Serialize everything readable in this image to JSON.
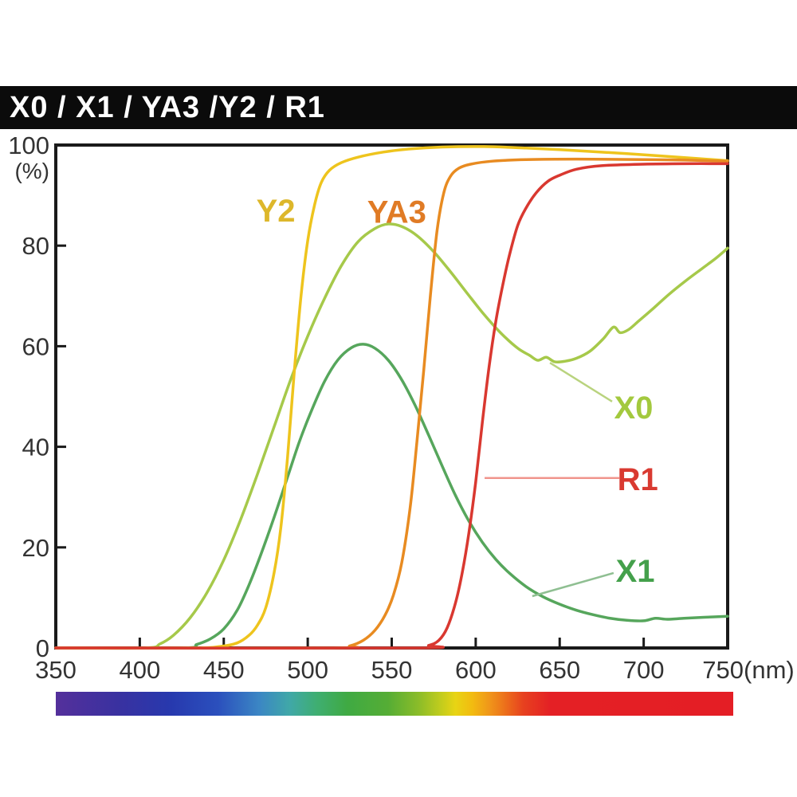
{
  "title_bar": {
    "text": "X0 / X1 / YA3 /Y2 / R1"
  },
  "chart_data": {
    "type": "line",
    "title": "X0 / X1 / YA3 /Y2 / R1",
    "xlabel": "(nm)",
    "ylabel": "(%)",
    "xlim": [
      350,
      750
    ],
    "ylim": [
      0,
      100
    ],
    "grid": false,
    "x_ticks": [
      350,
      400,
      450,
      500,
      550,
      600,
      650,
      700,
      750
    ],
    "x_tick_labels": [
      "350",
      "400",
      "450",
      "500",
      "550",
      "600",
      "650",
      "700",
      "750(nm)"
    ],
    "y_ticks": [
      0,
      20,
      40,
      60,
      80,
      100
    ],
    "y_tick_labels": [
      "0",
      "20",
      "40",
      "60",
      "80",
      "100"
    ],
    "frame_color": "#1a1a1a",
    "tick_label_color": "#333333",
    "series": [
      {
        "name": "X0",
        "color": "#a6c94a",
        "points": [
          [
            350,
            0
          ],
          [
            403,
            0
          ],
          [
            412,
            0.8
          ],
          [
            420,
            2.5
          ],
          [
            430,
            6
          ],
          [
            440,
            11
          ],
          [
            450,
            17.5
          ],
          [
            460,
            25.5
          ],
          [
            470,
            34.5
          ],
          [
            480,
            44
          ],
          [
            490,
            53.5
          ],
          [
            500,
            62
          ],
          [
            510,
            69.5
          ],
          [
            520,
            76
          ],
          [
            530,
            80.8
          ],
          [
            540,
            83.4
          ],
          [
            548,
            84.3
          ],
          [
            556,
            83.8
          ],
          [
            565,
            82
          ],
          [
            575,
            78.8
          ],
          [
            585,
            74.8
          ],
          [
            595,
            70.5
          ],
          [
            605,
            66.3
          ],
          [
            615,
            62.6
          ],
          [
            625,
            59.6
          ],
          [
            632,
            58.2
          ],
          [
            637,
            57.2
          ],
          [
            642,
            57.8
          ],
          [
            647,
            56.9
          ],
          [
            653,
            57
          ],
          [
            660,
            57.6
          ],
          [
            668,
            59
          ],
          [
            676,
            61.5
          ],
          [
            682,
            63.8
          ],
          [
            686,
            62.7
          ],
          [
            691,
            63.3
          ],
          [
            697,
            65
          ],
          [
            705,
            67.3
          ],
          [
            715,
            70.3
          ],
          [
            725,
            73
          ],
          [
            735,
            75.5
          ],
          [
            743,
            77.5
          ],
          [
            750,
            79.5
          ]
        ]
      },
      {
        "name": "X1",
        "color": "#56a65c",
        "points": [
          [
            350,
            0
          ],
          [
            425,
            0
          ],
          [
            434,
            0.7
          ],
          [
            442,
            1.8
          ],
          [
            450,
            3.8
          ],
          [
            458,
            7.5
          ],
          [
            465,
            12.5
          ],
          [
            472,
            18.5
          ],
          [
            480,
            26
          ],
          [
            488,
            34
          ],
          [
            495,
            41
          ],
          [
            502,
            47
          ],
          [
            510,
            53
          ],
          [
            518,
            57.3
          ],
          [
            526,
            59.7
          ],
          [
            533,
            60.4
          ],
          [
            540,
            59.6
          ],
          [
            548,
            57.2
          ],
          [
            556,
            53.3
          ],
          [
            564,
            48.2
          ],
          [
            572,
            42.3
          ],
          [
            580,
            36.2
          ],
          [
            588,
            30.3
          ],
          [
            596,
            25.2
          ],
          [
            604,
            21
          ],
          [
            612,
            17.6
          ],
          [
            620,
            14.9
          ],
          [
            630,
            12.2
          ],
          [
            640,
            10.2
          ],
          [
            650,
            8.7
          ],
          [
            660,
            7.5
          ],
          [
            670,
            6.6
          ],
          [
            680,
            5.9
          ],
          [
            690,
            5.5
          ],
          [
            700,
            5.4
          ],
          [
            707,
            5.9
          ],
          [
            714,
            5.7
          ],
          [
            724,
            5.9
          ],
          [
            736,
            6.1
          ],
          [
            750,
            6.3
          ]
        ]
      },
      {
        "name": "Y2",
        "color": "#eec41d",
        "points": [
          [
            350,
            0
          ],
          [
            430,
            0
          ],
          [
            448,
            0.3
          ],
          [
            458,
            1
          ],
          [
            465,
            2.5
          ],
          [
            470,
            4.5
          ],
          [
            475,
            8
          ],
          [
            480,
            15
          ],
          [
            484,
            24
          ],
          [
            488,
            38
          ],
          [
            492,
            55
          ],
          [
            496,
            70
          ],
          [
            500,
            81
          ],
          [
            504,
            88
          ],
          [
            508,
            92.5
          ],
          [
            513,
            95
          ],
          [
            520,
            96.5
          ],
          [
            530,
            97.6
          ],
          [
            545,
            98.6
          ],
          [
            560,
            99.2
          ],
          [
            580,
            99.6
          ],
          [
            605,
            99.7
          ],
          [
            630,
            99.4
          ],
          [
            660,
            98.9
          ],
          [
            690,
            98.3
          ],
          [
            720,
            97.6
          ],
          [
            750,
            96.9
          ]
        ]
      },
      {
        "name": "YA3",
        "color": "#e88b21",
        "points": [
          [
            350,
            0
          ],
          [
            515,
            0
          ],
          [
            525,
            0.4
          ],
          [
            533,
            1.5
          ],
          [
            540,
            3.5
          ],
          [
            546,
            6.5
          ],
          [
            551,
            10.5
          ],
          [
            556,
            17
          ],
          [
            561,
            28
          ],
          [
            565,
            41
          ],
          [
            569,
            55
          ],
          [
            573,
            70
          ],
          [
            577,
            83
          ],
          [
            581,
            90.5
          ],
          [
            585,
            93.8
          ],
          [
            590,
            95.4
          ],
          [
            597,
            96.2
          ],
          [
            610,
            96.8
          ],
          [
            630,
            97.1
          ],
          [
            660,
            97.2
          ],
          [
            700,
            97.1
          ],
          [
            725,
            97
          ],
          [
            750,
            96.8
          ]
        ]
      },
      {
        "name": "R1",
        "color": "#d93830",
        "points": [
          [
            350,
            0
          ],
          [
            562,
            0
          ],
          [
            572,
            0.5
          ],
          [
            578,
            1.5
          ],
          [
            583,
            4
          ],
          [
            588,
            9
          ],
          [
            592,
            15
          ],
          [
            596,
            23
          ],
          [
            600,
            33
          ],
          [
            604,
            45
          ],
          [
            608,
            56
          ],
          [
            612,
            65
          ],
          [
            616,
            72
          ],
          [
            620,
            78
          ],
          [
            625,
            84
          ],
          [
            630,
            87.5
          ],
          [
            636,
            90.5
          ],
          [
            643,
            92.8
          ],
          [
            650,
            94
          ],
          [
            660,
            95.2
          ],
          [
            675,
            95.9
          ],
          [
            700,
            96.2
          ],
          [
            725,
            96.3
          ],
          [
            750,
            96.3
          ]
        ]
      }
    ],
    "annotations": [
      {
        "text": "Y2",
        "x": 481,
        "y": 87.0,
        "color": "#ddb72b"
      },
      {
        "text": "YA3",
        "x": 553,
        "y": 86.8,
        "color": "#e07b25"
      },
      {
        "text": "X0",
        "x": 694,
        "y": 47.9,
        "color": "#a3c93e",
        "leader": {
          "from": [
            644.2,
            56.7
          ],
          "to": [
            681.2,
            49.0
          ],
          "color": "#b9d37e"
        }
      },
      {
        "text": "R1",
        "x": 696.5,
        "y": 33.6,
        "color": "#d93a31",
        "leader": {
          "from": [
            605.3,
            33.8
          ],
          "to": [
            685.5,
            33.8
          ],
          "color": "#f0948c"
        }
      },
      {
        "text": "X1",
        "x": 695,
        "y": 15.4,
        "color": "#44a04b",
        "leader": {
          "from": [
            633.7,
            10.3
          ],
          "to": [
            682.1,
            14.9
          ],
          "color": "#8fbf92"
        }
      }
    ],
    "spectrum_bar": {
      "range_nm": [
        350,
        750
      ],
      "stops": [
        [
          0.0,
          "#54309b"
        ],
        [
          0.09,
          "#3a31a0"
        ],
        [
          0.17,
          "#2739ae"
        ],
        [
          0.24,
          "#2b50bd"
        ],
        [
          0.3,
          "#3b86c4"
        ],
        [
          0.345,
          "#40a8a8"
        ],
        [
          0.385,
          "#3fae72"
        ],
        [
          0.43,
          "#3faa43"
        ],
        [
          0.49,
          "#55ad35"
        ],
        [
          0.535,
          "#8abc29"
        ],
        [
          0.565,
          "#bccb1e"
        ],
        [
          0.59,
          "#e8d414"
        ],
        [
          0.615,
          "#f2bb10"
        ],
        [
          0.64,
          "#f0961a"
        ],
        [
          0.665,
          "#ec6d1b"
        ],
        [
          0.69,
          "#e7411f"
        ],
        [
          0.73,
          "#e42025"
        ],
        [
          1.0,
          "#e41e25"
        ]
      ]
    }
  }
}
